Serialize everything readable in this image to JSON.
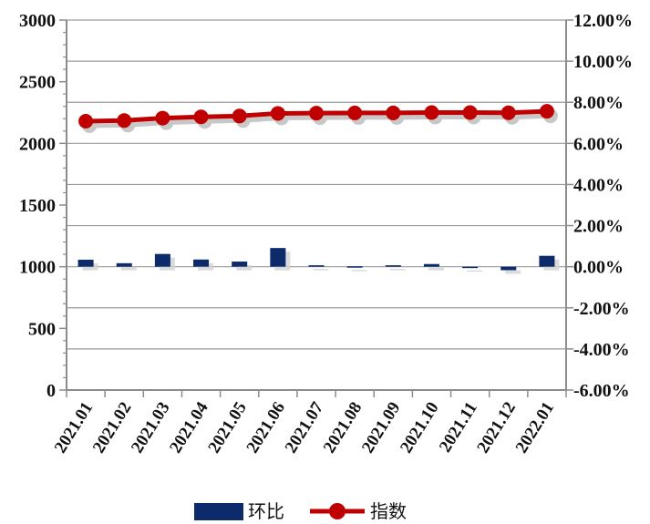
{
  "chart_data": {
    "type": "bar",
    "categories": [
      "2021.01",
      "2021.02",
      "2021.03",
      "2021.04",
      "2021.05",
      "2021.06",
      "2021.07",
      "2021.08",
      "2021.09",
      "2021.10",
      "2021.11",
      "2021.12",
      "2022.01"
    ],
    "series": [
      {
        "name": "环比",
        "type": "bar",
        "axis": "right",
        "color": "#0d2a6b",
        "values": [
          0.34,
          0.17,
          0.62,
          0.35,
          0.25,
          0.91,
          0.07,
          0.02,
          0.07,
          0.13,
          -0.02,
          -0.17,
          0.53
        ]
      },
      {
        "name": "指数",
        "type": "line",
        "axis": "left",
        "color": "#c00000",
        "marker": "circle",
        "values": [
          2180,
          2185,
          2205,
          2215,
          2222,
          2243,
          2245,
          2247,
          2247,
          2250,
          2250,
          2248,
          2260
        ]
      }
    ],
    "y_left": {
      "ylim": [
        0,
        3000
      ],
      "ticks": [
        0,
        500,
        1000,
        1500,
        2000,
        2500,
        3000
      ],
      "tick_labels": [
        "0",
        "500",
        "1000",
        "1500",
        "2000",
        "2500",
        "3000"
      ]
    },
    "y_right": {
      "ylim": [
        -6,
        12
      ],
      "ticks": [
        -6,
        -4,
        -2,
        0,
        2,
        4,
        6,
        8,
        10,
        12
      ],
      "tick_labels": [
        "-6.00%",
        "-4.00%",
        "-2.00%",
        "0.00%",
        "2.00%",
        "4.00%",
        "6.00%",
        "8.00%",
        "10.00%",
        "12.00%"
      ]
    },
    "grid": true,
    "legend": "bottom",
    "title": "",
    "xlabel": "",
    "ylabel": ""
  }
}
